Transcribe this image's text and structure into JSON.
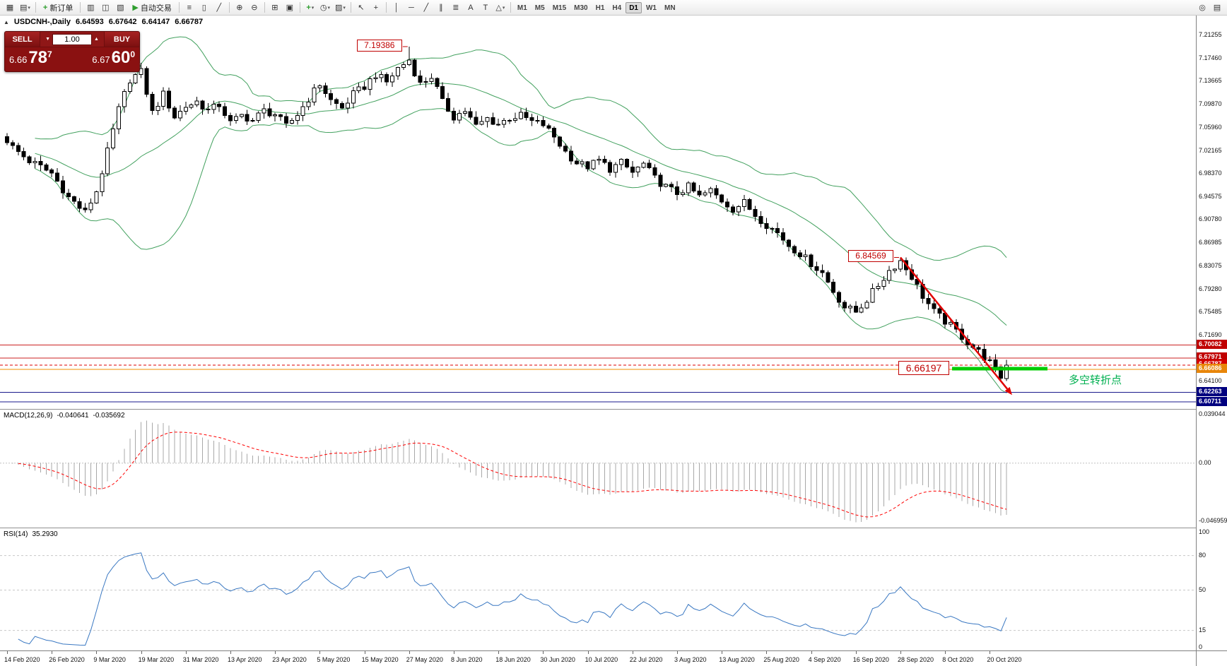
{
  "toolbar": {
    "items": [
      {
        "t": "icon",
        "n": "new-chart-icon",
        "g": "▦"
      },
      {
        "t": "icon",
        "n": "profiles-icon",
        "g": "▤",
        "dd": true
      },
      {
        "t": "sep"
      },
      {
        "t": "btn",
        "n": "new-order-button",
        "g": "+",
        "gcolor": "#2e9e2e",
        "label": "新订单"
      },
      {
        "t": "sep"
      },
      {
        "t": "icon",
        "n": "market-watch-icon",
        "g": "▥"
      },
      {
        "t": "icon",
        "n": "data-window-icon",
        "g": "◫"
      },
      {
        "t": "icon",
        "n": "navigator-icon",
        "g": "▧"
      },
      {
        "t": "btn",
        "n": "autotrading-button",
        "g": "▶",
        "gcolor": "#2e9e2e",
        "label": "自动交易"
      },
      {
        "t": "sep"
      },
      {
        "t": "icon",
        "n": "bar-chart-icon",
        "g": "≡"
      },
      {
        "t": "icon",
        "n": "candlestick-chart-icon",
        "g": "▯"
      },
      {
        "t": "icon",
        "n": "line-chart-icon",
        "g": "╱"
      },
      {
        "t": "sep"
      },
      {
        "t": "icon",
        "n": "zoom-in-icon",
        "g": "⊕"
      },
      {
        "t": "icon",
        "n": "zoom-out-icon",
        "g": "⊖"
      },
      {
        "t": "sep"
      },
      {
        "t": "icon",
        "n": "grid-icon",
        "g": "⊞"
      },
      {
        "t": "icon",
        "n": "tile-windows-icon",
        "g": "▣"
      },
      {
        "t": "sep"
      },
      {
        "t": "icon",
        "n": "indicators-icon",
        "g": "+",
        "gcolor": "#2e9e2e",
        "dd": true
      },
      {
        "t": "icon",
        "n": "periods-icon",
        "g": "◷",
        "dd": true
      },
      {
        "t": "icon",
        "n": "templates-icon",
        "g": "▨",
        "dd": true
      },
      {
        "t": "sep"
      },
      {
        "t": "icon",
        "n": "cursor-icon",
        "g": "↖"
      },
      {
        "t": "icon",
        "n": "crosshair-icon",
        "g": "+"
      },
      {
        "t": "sep"
      },
      {
        "t": "icon",
        "n": "vertical-line-icon",
        "g": "│"
      },
      {
        "t": "icon",
        "n": "horizontal-line-icon",
        "g": "─"
      },
      {
        "t": "icon",
        "n": "trendline-icon",
        "g": "╱"
      },
      {
        "t": "icon",
        "n": "channel-icon",
        "g": "∥"
      },
      {
        "t": "icon",
        "n": "fibonacci-icon",
        "g": "≣"
      },
      {
        "t": "icon",
        "n": "text-icon",
        "g": "A"
      },
      {
        "t": "icon",
        "n": "label-icon",
        "g": "T"
      },
      {
        "t": "icon",
        "n": "shapes-icon",
        "g": "△",
        "dd": true
      },
      {
        "t": "sep"
      }
    ],
    "timeframes": [
      "M1",
      "M5",
      "M15",
      "M30",
      "H1",
      "H4",
      "D1",
      "W1",
      "MN"
    ],
    "active_timeframe": "D1",
    "right_icons": [
      {
        "n": "quick-search-icon",
        "g": "◎"
      },
      {
        "n": "community-icon",
        "g": "▤"
      }
    ]
  },
  "icons": {
    "spinner_up": "▲",
    "spinner_down": "▼",
    "collapse": "▲",
    "dropdown": "▾"
  },
  "chart_header": {
    "symbol_period": "USDCNH-,Daily",
    "open": "6.64593",
    "high": "6.67642",
    "low": "6.64147",
    "close": "6.66787"
  },
  "trade_panel": {
    "sell_label": "SELL",
    "buy_label": "BUY",
    "volume": "1.00",
    "sell_price_prefix": "6.66",
    "sell_price_big": "78",
    "sell_price_sup": "7",
    "buy_price_prefix": "6.67",
    "buy_price_big": "60",
    "buy_price_sup": "0"
  },
  "annotations": {
    "high_label": "7.19386",
    "swing_label": "6.84569",
    "support_label": "6.66197",
    "turning_point_text": "多空转折点",
    "support_level_color": "#00cc00",
    "trend_arrow_color": "#e00000"
  },
  "price_axis": {
    "ticks": [
      "7.21255",
      "7.17460",
      "7.13665",
      "7.09870",
      "7.05960",
      "7.02165",
      "6.98370",
      "6.94575",
      "6.90780",
      "6.86985",
      "6.83075",
      "6.79280",
      "6.75485",
      "6.71690",
      "6.64100"
    ],
    "badges": [
      {
        "text": "6.70082",
        "price": 6.70082,
        "bg": "#c00000"
      },
      {
        "text": "6.67971",
        "price": 6.67971,
        "bg": "#c00000"
      },
      {
        "text": "6.66787",
        "price": 6.66787,
        "bg": "#d40000"
      },
      {
        "text": "6.66086",
        "price": 6.66086,
        "bg": "#e8860a"
      },
      {
        "text": "6.62263",
        "price": 6.62263,
        "bg": "#00007f"
      },
      {
        "text": "6.60711",
        "price": 6.60711,
        "bg": "#00007f"
      }
    ]
  },
  "hlines": [
    {
      "price": 6.70082,
      "color": "#cc2222"
    },
    {
      "price": 6.67971,
      "color": "#cc2222"
    },
    {
      "price": 6.66086,
      "color": "#f09000"
    },
    {
      "price": 6.62263,
      "color": "#1a1a8c"
    },
    {
      "price": 6.60711,
      "color": "#1a1a8c"
    }
  ],
  "current_price": {
    "value": 6.66787,
    "color": "#dd0000"
  },
  "macd": {
    "name": "MACD(12,26,9)",
    "value_main": "-0.040641",
    "value_signal": "-0.035692",
    "axis_max": "0.039044",
    "axis_zero": "0.00",
    "axis_min": "-0.046959"
  },
  "rsi": {
    "name": "RSI(14)",
    "value": "35.2930",
    "axis_labels": [
      "100",
      "80",
      "50",
      "15",
      "0"
    ],
    "levels": [
      80,
      50,
      15
    ]
  },
  "time_axis": {
    "dates": [
      "14 Feb 2020",
      "26 Feb 2020",
      "9 Mar 2020",
      "19 Mar 2020",
      "31 Mar 2020",
      "13 Apr 2020",
      "23 Apr 2020",
      "5 May 2020",
      "15 May 2020",
      "27 May 2020",
      "8 Jun 2020",
      "18 Jun 2020",
      "30 Jun 2020",
      "10 Jul 2020",
      "22 Jul 2020",
      "3 Aug 2020",
      "13 Aug 2020",
      "25 Aug 2020",
      "4 Sep 2020",
      "16 Sep 2020",
      "28 Sep 2020",
      "8 Oct 2020",
      "20 Oct 2020"
    ]
  },
  "chart_data": {
    "type": "candlestick",
    "symbol": "USDCNH-",
    "timeframe": "Daily",
    "visible_ohlc": {
      "open": 6.64593,
      "high": 6.67642,
      "low": 6.64147,
      "close": 6.66787
    },
    "key_highs": {
      "may": 7.19386,
      "sep": 6.84569
    },
    "support_level": 6.66197,
    "levels": [
      6.70082,
      6.67971,
      6.66086,
      6.62263,
      6.60711
    ],
    "num_candles": 180,
    "price_axis_top": 7.244,
    "price_axis_bottom": 6.5955,
    "close_anchors": [
      [
        0,
        7.035
      ],
      [
        4,
        7.005
      ],
      [
        8,
        6.985
      ],
      [
        11,
        6.945
      ],
      [
        14,
        6.92
      ],
      [
        16,
        6.955
      ],
      [
        18,
        7.02
      ],
      [
        20,
        7.09
      ],
      [
        22,
        7.14
      ],
      [
        24,
        7.152
      ],
      [
        26,
        7.085
      ],
      [
        28,
        7.115
      ],
      [
        30,
        7.078
      ],
      [
        32,
        7.095
      ],
      [
        34,
        7.103
      ],
      [
        36,
        7.088
      ],
      [
        38,
        7.098
      ],
      [
        40,
        7.068
      ],
      [
        42,
        7.08
      ],
      [
        44,
        7.072
      ],
      [
        46,
        7.088
      ],
      [
        48,
        7.082
      ],
      [
        50,
        7.062
      ],
      [
        52,
        7.082
      ],
      [
        54,
        7.108
      ],
      [
        56,
        7.132
      ],
      [
        58,
        7.105
      ],
      [
        60,
        7.092
      ],
      [
        62,
        7.115
      ],
      [
        64,
        7.128
      ],
      [
        66,
        7.148
      ],
      [
        68,
        7.135
      ],
      [
        70,
        7.158
      ],
      [
        72,
        7.172
      ],
      [
        74,
        7.132
      ],
      [
        76,
        7.145
      ],
      [
        78,
        7.102
      ],
      [
        80,
        7.078
      ],
      [
        82,
        7.088
      ],
      [
        84,
        7.062
      ],
      [
        86,
        7.075
      ],
      [
        88,
        7.066
      ],
      [
        90,
        7.076
      ],
      [
        92,
        7.08
      ],
      [
        94,
        7.07
      ],
      [
        96,
        7.065
      ],
      [
        98,
        7.045
      ],
      [
        100,
        7.02
      ],
      [
        102,
        7.002
      ],
      [
        104,
        6.996
      ],
      [
        106,
        7.006
      ],
      [
        108,
        6.992
      ],
      [
        110,
        7.002
      ],
      [
        112,
        6.986
      ],
      [
        114,
        7.0
      ],
      [
        116,
        6.976
      ],
      [
        118,
        6.962
      ],
      [
        120,
        6.952
      ],
      [
        122,
        6.962
      ],
      [
        124,
        6.946
      ],
      [
        126,
        6.956
      ],
      [
        128,
        6.94
      ],
      [
        130,
        6.926
      ],
      [
        132,
        6.936
      ],
      [
        134,
        6.916
      ],
      [
        136,
        6.9
      ],
      [
        138,
        6.886
      ],
      [
        140,
        6.866
      ],
      [
        142,
        6.852
      ],
      [
        144,
        6.836
      ],
      [
        146,
        6.82
      ],
      [
        148,
        6.79
      ],
      [
        150,
        6.764
      ],
      [
        152,
        6.756
      ],
      [
        154,
        6.776
      ],
      [
        156,
        6.8
      ],
      [
        158,
        6.824
      ],
      [
        160,
        6.84
      ],
      [
        162,
        6.814
      ],
      [
        164,
        6.782
      ],
      [
        166,
        6.756
      ],
      [
        168,
        6.74
      ],
      [
        170,
        6.724
      ],
      [
        172,
        6.706
      ],
      [
        174,
        6.69
      ],
      [
        176,
        6.672
      ],
      [
        178,
        6.64593
      ],
      [
        179,
        6.66787
      ]
    ],
    "indicators": [
      {
        "name": "Bollinger Bands",
        "period": 20,
        "deviation": 2
      },
      {
        "name": "MACD",
        "fast": 12,
        "slow": 26,
        "signal": 9,
        "current": [
          -0.040641,
          -0.035692
        ]
      },
      {
        "name": "RSI",
        "period": 14,
        "current": 35.293
      }
    ]
  },
  "colors": {
    "bollinger": "#43a15f",
    "macd_histogram": "#a8a8a8",
    "macd_signal": "#ff0000",
    "rsi_line": "#3a78c2",
    "bull": "#ffffff",
    "bear": "#000000"
  }
}
